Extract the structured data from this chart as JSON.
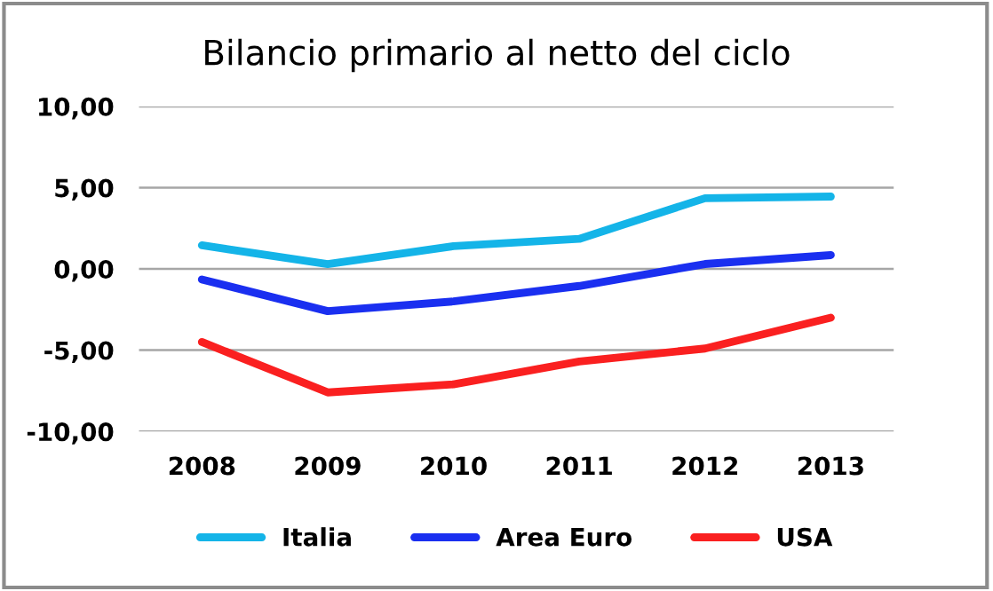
{
  "chart_data": {
    "type": "line",
    "title": "Bilancio primario al netto del ciclo",
    "categories": [
      "2008",
      "2009",
      "2010",
      "2011",
      "2012",
      "2013"
    ],
    "series": [
      {
        "name": "Italia",
        "color": "#14b4e8",
        "values": [
          1.45,
          0.3,
          1.4,
          1.85,
          4.35,
          4.45
        ]
      },
      {
        "name": "Area Euro",
        "color": "#1a2ff0",
        "values": [
          -0.65,
          -2.6,
          -2.0,
          -1.05,
          0.3,
          0.85
        ]
      },
      {
        "name": "USA",
        "color": "#fa2020",
        "values": [
          -4.5,
          -7.6,
          -7.1,
          -5.7,
          -4.9,
          -3.0
        ]
      }
    ],
    "ylim": [
      -10,
      10
    ],
    "yticks": [
      {
        "value": -10,
        "label": "-10,00"
      },
      {
        "value": -5,
        "label": "-5,00"
      },
      {
        "value": 0,
        "label": "0,00"
      },
      {
        "value": 5,
        "label": "5,00"
      },
      {
        "value": 10,
        "label": "10,00"
      }
    ],
    "grid": "y",
    "legend": "bottom",
    "marker": "none",
    "line_style": "solid"
  }
}
